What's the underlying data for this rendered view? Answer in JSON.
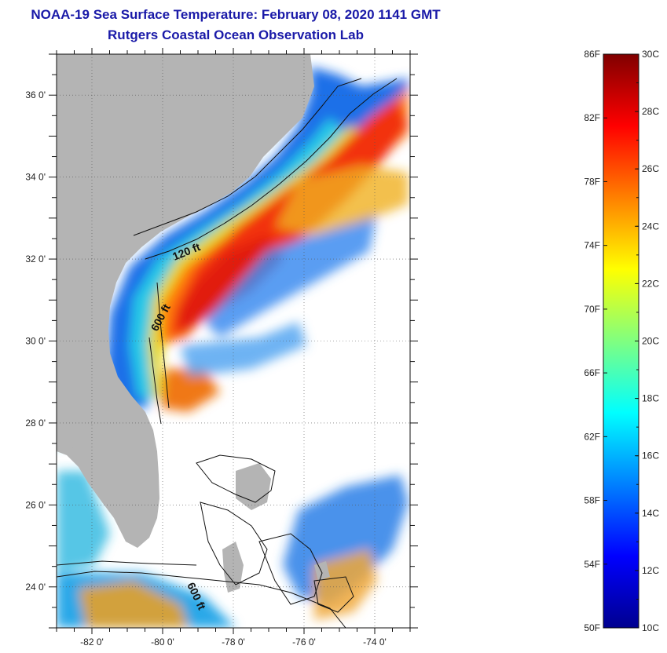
{
  "header": {
    "title": "NOAA-19 Sea Surface Temperature:  February 08, 2020 1141 GMT",
    "subtitle": "Rutgers Coastal Ocean Observation Lab"
  },
  "map": {
    "lon_range": [
      -83,
      -73
    ],
    "lat_range": [
      23,
      37
    ],
    "lon_ticks": [
      {
        "value": -82,
        "label": "-82 0'"
      },
      {
        "value": -80,
        "label": "-80 0'"
      },
      {
        "value": -78,
        "label": "-78 0'"
      },
      {
        "value": -76,
        "label": "-76 0'"
      },
      {
        "value": -74,
        "label": "-74 0'"
      }
    ],
    "lat_ticks": [
      {
        "value": 36,
        "label": "36 0'"
      },
      {
        "value": 34,
        "label": "34 0'"
      },
      {
        "value": 32,
        "label": "32 0'"
      },
      {
        "value": 30,
        "label": "30 0'"
      },
      {
        "value": 28,
        "label": "28 0'"
      },
      {
        "value": 26,
        "label": "26 0'"
      },
      {
        "value": 24,
        "label": "24 0'"
      }
    ],
    "contours": [
      {
        "label": "120 ft"
      },
      {
        "label": "600 ft"
      },
      {
        "label": "600 ft"
      }
    ],
    "land_color": "#b4b4b4",
    "grid": "dotted"
  },
  "colorbar": {
    "min_c": 10,
    "max_c": 30,
    "fahrenheit_labels": [
      "86F",
      "82F",
      "78F",
      "74F",
      "70F",
      "66F",
      "62F",
      "58F",
      "54F",
      "50F"
    ],
    "celsius_labels": [
      "30C",
      "28C",
      "26C",
      "24C",
      "22C",
      "20C",
      "18C",
      "16C",
      "14C",
      "12C",
      "10C"
    ],
    "colors": [
      "#00008f",
      "#0000ff",
      "#0080ff",
      "#00ffff",
      "#80ff80",
      "#ffff00",
      "#ff8000",
      "#ff0000",
      "#800000"
    ]
  }
}
